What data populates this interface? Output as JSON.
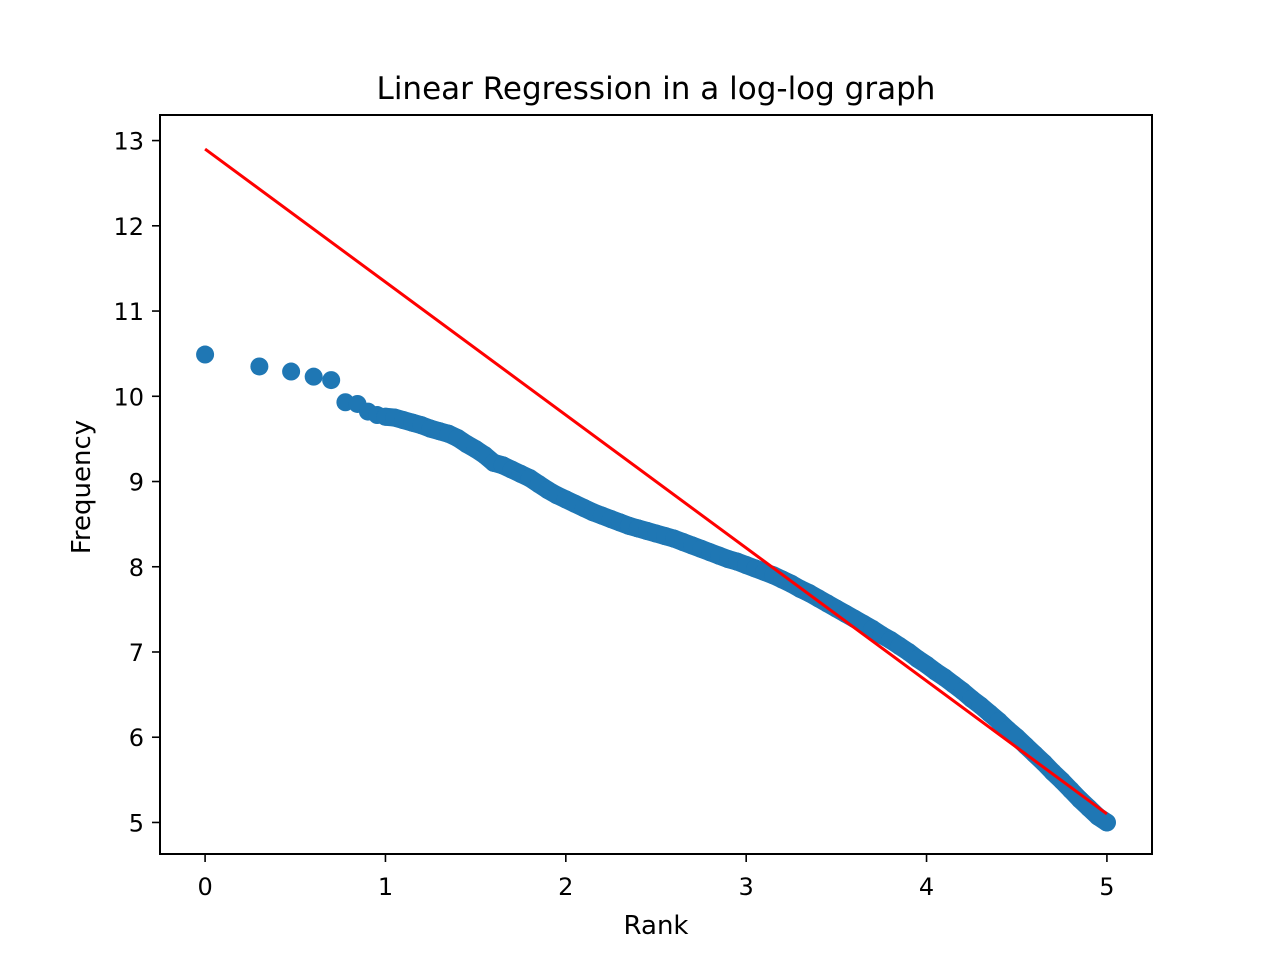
{
  "chart_data": {
    "type": "scatter",
    "title": "Linear Regression in a log-log graph",
    "xlabel": "Rank",
    "ylabel": "Frequency",
    "xlim": [
      -0.25,
      5.25
    ],
    "ylim": [
      4.63,
      13.3
    ],
    "xticks": [
      "0",
      "1",
      "2",
      "3",
      "4",
      "5"
    ],
    "yticks": [
      "5",
      "6",
      "7",
      "8",
      "9",
      "10",
      "11",
      "12",
      "13"
    ],
    "grid": false,
    "legend": "none",
    "series": [
      {
        "kind": "scatter",
        "color": "#1f77b4",
        "points": [
          [
            0.0,
            10.49
          ],
          [
            0.301,
            10.35
          ],
          [
            0.477,
            10.29
          ],
          [
            0.602,
            10.23
          ],
          [
            0.699,
            10.19
          ],
          [
            0.778,
            9.93
          ],
          [
            0.845,
            9.91
          ],
          [
            0.903,
            9.82
          ],
          [
            0.954,
            9.78
          ],
          [
            1.0,
            9.76
          ],
          [
            1.05,
            9.75
          ],
          [
            1.1,
            9.72
          ],
          [
            1.15,
            9.69
          ],
          [
            1.2,
            9.66
          ],
          [
            1.25,
            9.62
          ],
          [
            1.3,
            9.59
          ],
          [
            1.35,
            9.56
          ],
          [
            1.4,
            9.51
          ],
          [
            1.45,
            9.44
          ],
          [
            1.5,
            9.38
          ],
          [
            1.55,
            9.31
          ],
          [
            1.6,
            9.22
          ],
          [
            1.65,
            9.19
          ],
          [
            1.7,
            9.14
          ],
          [
            1.75,
            9.09
          ],
          [
            1.8,
            9.04
          ],
          [
            1.85,
            8.97
          ],
          [
            1.9,
            8.9
          ],
          [
            1.95,
            8.84
          ],
          [
            2.0,
            8.79
          ],
          [
            2.05,
            8.74
          ],
          [
            2.1,
            8.69
          ],
          [
            2.15,
            8.64
          ],
          [
            2.2,
            8.6
          ],
          [
            2.25,
            8.56
          ],
          [
            2.3,
            8.52
          ],
          [
            2.35,
            8.48
          ],
          [
            2.4,
            8.45
          ],
          [
            2.45,
            8.42
          ],
          [
            2.5,
            8.39
          ],
          [
            2.55,
            8.36
          ],
          [
            2.6,
            8.33
          ],
          [
            2.65,
            8.29
          ],
          [
            2.7,
            8.25
          ],
          [
            2.75,
            8.21
          ],
          [
            2.8,
            8.17
          ],
          [
            2.85,
            8.13
          ],
          [
            2.9,
            8.09
          ],
          [
            2.95,
            8.06
          ],
          [
            3.0,
            8.02
          ],
          [
            3.05,
            7.98
          ],
          [
            3.1,
            7.94
          ],
          [
            3.15,
            7.9
          ],
          [
            3.2,
            7.85
          ],
          [
            3.25,
            7.8
          ],
          [
            3.3,
            7.74
          ],
          [
            3.35,
            7.69
          ],
          [
            3.4,
            7.63
          ],
          [
            3.45,
            7.57
          ],
          [
            3.5,
            7.51
          ],
          [
            3.55,
            7.45
          ],
          [
            3.6,
            7.39
          ],
          [
            3.65,
            7.33
          ],
          [
            3.7,
            7.27
          ],
          [
            3.75,
            7.2
          ],
          [
            3.8,
            7.14
          ],
          [
            3.85,
            7.07
          ],
          [
            3.9,
            7.0
          ],
          [
            3.95,
            6.92
          ],
          [
            4.0,
            6.85
          ],
          [
            4.05,
            6.77
          ],
          [
            4.1,
            6.7
          ],
          [
            4.15,
            6.62
          ],
          [
            4.2,
            6.54
          ],
          [
            4.25,
            6.45
          ],
          [
            4.3,
            6.37
          ],
          [
            4.35,
            6.28
          ],
          [
            4.4,
            6.19
          ],
          [
            4.45,
            6.09
          ],
          [
            4.5,
            6.0
          ],
          [
            4.55,
            5.9
          ],
          [
            4.6,
            5.8
          ],
          [
            4.65,
            5.7
          ],
          [
            4.7,
            5.59
          ],
          [
            4.75,
            5.49
          ],
          [
            4.8,
            5.38
          ],
          [
            4.85,
            5.27
          ],
          [
            4.9,
            5.17
          ],
          [
            4.95,
            5.07
          ],
          [
            5.0,
            5.0
          ]
        ]
      },
      {
        "kind": "line",
        "color": "#ff0000",
        "x": [
          0,
          5
        ],
        "y": [
          12.9,
          5.1
        ]
      }
    ]
  }
}
